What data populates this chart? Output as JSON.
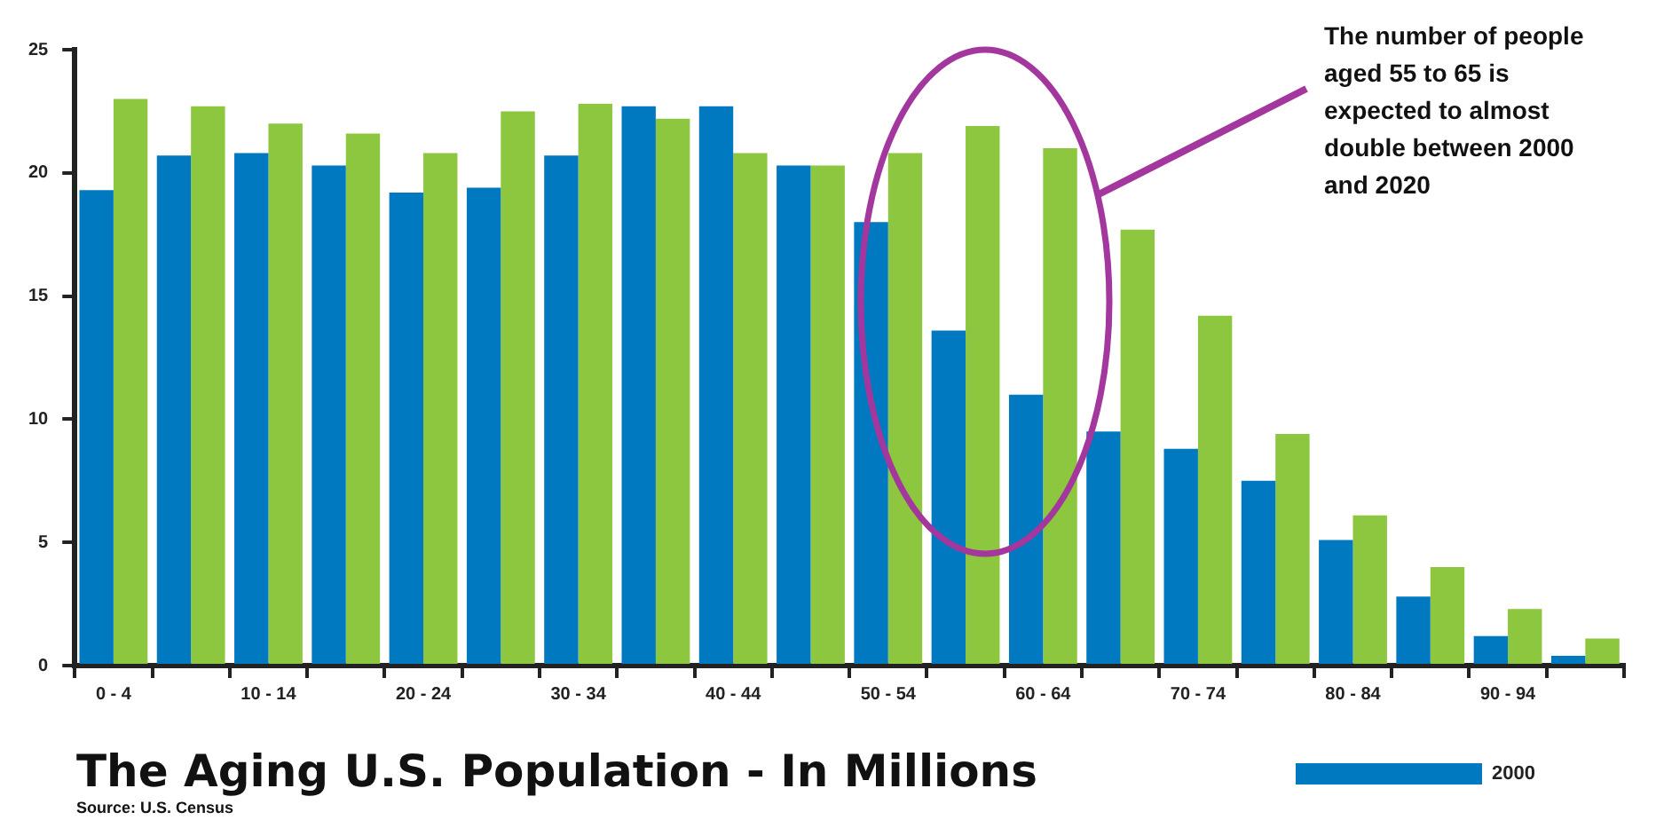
{
  "chart_data": {
    "type": "bar",
    "title": "The Aging U.S. Population - In Millions",
    "categories": [
      "0 - 4",
      null,
      "10 - 14",
      null,
      "20 - 24",
      null,
      "30 - 34",
      null,
      "40 - 44",
      null,
      "50 - 54",
      null,
      "60 - 64",
      null,
      "70 - 74",
      null,
      "80 - 84",
      null,
      "90 - 94",
      null
    ],
    "series": [
      {
        "name": "2000",
        "color": "#0079c1",
        "values": [
          19.3,
          20.7,
          20.8,
          20.3,
          19.2,
          19.4,
          20.7,
          22.7,
          22.7,
          20.3,
          18.0,
          13.6,
          11.0,
          9.5,
          8.8,
          7.5,
          5.1,
          2.8,
          1.2,
          0.4
        ]
      },
      {
        "color": "#8dc63f",
        "values": [
          23.0,
          22.7,
          22.0,
          21.6,
          20.8,
          22.5,
          22.8,
          22.2,
          20.8,
          20.3,
          20.8,
          21.9,
          21.0,
          17.7,
          14.2,
          9.4,
          6.1,
          4.0,
          2.3,
          1.1
        ]
      }
    ],
    "ylim": [
      0,
      25
    ],
    "yticks": [
      0,
      5,
      10,
      15,
      20,
      25
    ],
    "grid": false,
    "legend": "bottom right",
    "annotations": [
      "The number of people aged 55 to 65 is expected to almost double between 2000 and 2020",
      "Source: U.S. Census"
    ]
  }
}
